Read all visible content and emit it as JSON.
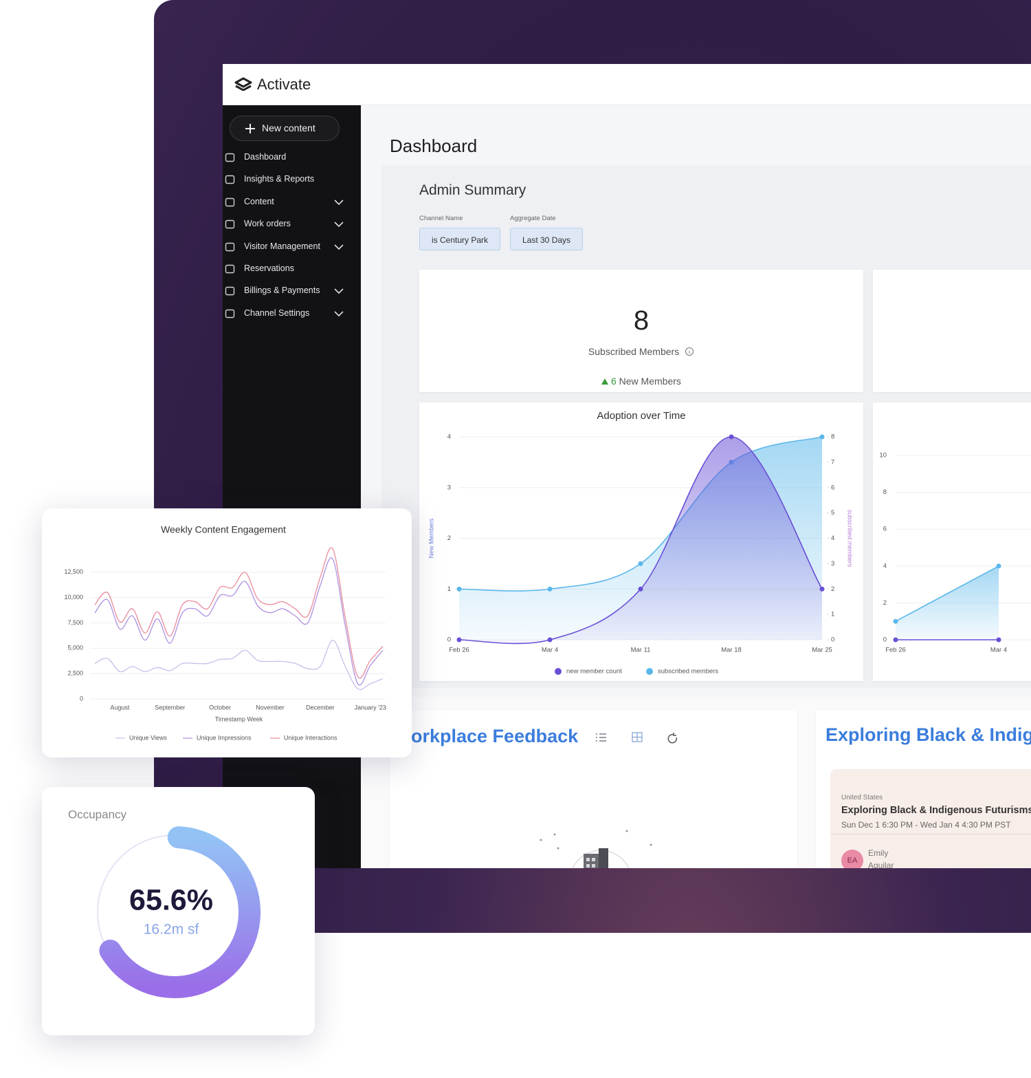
{
  "header": {
    "brand": "Activate"
  },
  "sidebar": {
    "new_content": "New content",
    "nav": [
      "Dashboard",
      "Insights & Reports",
      "Content",
      "Work orders",
      "Visitor Management",
      "Reservations",
      "Billings & Payments",
      "Channel Settings"
    ]
  },
  "dashboard": {
    "title": "Dashboard",
    "section_title": "Admin Summary",
    "filters": [
      {
        "label": "Channel Name",
        "value": "is Century Park"
      },
      {
        "label": "Aggregate Date",
        "value": "Last 30 Days"
      }
    ],
    "subscribed": {
      "value": 8,
      "label": "Subscribed Members",
      "new_members": 6,
      "new_members_label": "New Members"
    }
  },
  "adoption_chart": {
    "type": "line",
    "title": "Adoption over Time",
    "categories": [
      "Feb 26",
      "Mar 4",
      "Mar 11",
      "Mar 18",
      "Mar 25"
    ],
    "y_label": "New Members",
    "y2_label": "subscribed members",
    "ylim": [
      0,
      4
    ],
    "yticks": [
      0,
      1,
      2,
      3,
      4
    ],
    "y2lim": [
      0,
      8
    ],
    "y2ticks": [
      0,
      1,
      2,
      3,
      4,
      5,
      6,
      7,
      8
    ],
    "series": [
      {
        "name": "new member count",
        "color": "#6a4fd6",
        "values": [
          0,
          0,
          1,
          4,
          1
        ]
      },
      {
        "name": "subscribed members",
        "color": "#5ab7ea",
        "axis": "y2",
        "values": [
          2,
          2,
          3,
          7,
          8
        ]
      }
    ]
  },
  "adoption_chart_2": {
    "type": "line",
    "categories": [
      "Feb 26",
      "Mar 4"
    ],
    "ylim": [
      0,
      10
    ],
    "yticks": [
      0,
      2,
      4,
      6,
      8,
      10
    ],
    "series": [
      {
        "color": "#6a4fd6",
        "values": [
          0,
          0
        ]
      },
      {
        "color": "#5ab7ea",
        "values": [
          1,
          4
        ]
      }
    ]
  },
  "engagement_chart": {
    "type": "line",
    "title": "Weekly Content Engagement",
    "x_label": "Timestamp Week",
    "categories": [
      null,
      null,
      "August",
      null,
      null,
      null,
      "September",
      null,
      null,
      null,
      "October",
      null,
      null,
      null,
      "November",
      null,
      null,
      null,
      "December",
      null,
      null,
      null,
      "January '23",
      null
    ],
    "ylim": [
      0,
      15000
    ],
    "yticks": [
      0,
      {
        "value": 2500,
        "label": "2,500"
      },
      {
        "value": 5000,
        "label": "5,000"
      },
      {
        "value": 7500,
        "label": "7,500"
      },
      {
        "value": 10000,
        "label": "10,000"
      },
      {
        "value": 12500,
        "label": "12,500"
      }
    ],
    "grid": true,
    "series": [
      {
        "name": "Unique Views",
        "color": "#cbbde9",
        "values": [
          3500,
          4000,
          2700,
          3200,
          2700,
          3100,
          2800,
          3500,
          3500,
          3500,
          3900,
          4000,
          4800,
          3800,
          3700,
          3700,
          3500,
          3000,
          3200,
          5800,
          3200,
          1000,
          1500,
          2000
        ]
      },
      {
        "name": "Unique Impressions",
        "color": "#ad8fe0",
        "values": [
          8500,
          9800,
          6900,
          8200,
          5800,
          7900,
          5500,
          8500,
          8900,
          8200,
          10200,
          10200,
          11600,
          9200,
          8500,
          8900,
          8200,
          7500,
          11200,
          13800,
          7200,
          1500,
          3300,
          4800
        ]
      },
      {
        "name": "Unique Interactions",
        "color": "#e98b9c",
        "values": [
          9300,
          10500,
          7600,
          8900,
          6500,
          8600,
          6200,
          9300,
          9600,
          8900,
          11000,
          11000,
          12500,
          9900,
          9300,
          9600,
          8900,
          8200,
          12000,
          14800,
          8000,
          2200,
          3800,
          5200
        ]
      }
    ]
  },
  "occupancy": {
    "title": "Occupancy",
    "value": 65.6,
    "value_label": "65.6%",
    "area": "16.2m sf"
  },
  "feedback": {
    "title": "Workplace Feedback"
  },
  "events": {
    "title": "Exploring Black & Indigenous Futurisms",
    "card": {
      "country": "United States",
      "name": "Exploring Black & Indigenous Futurisms",
      "dates": "Sun Dec 1 6:30 PM - Wed Jan 4 4:30 PM PST",
      "host_initials": "EA",
      "host_first": "Emily",
      "host_last": "Aguilar"
    }
  }
}
